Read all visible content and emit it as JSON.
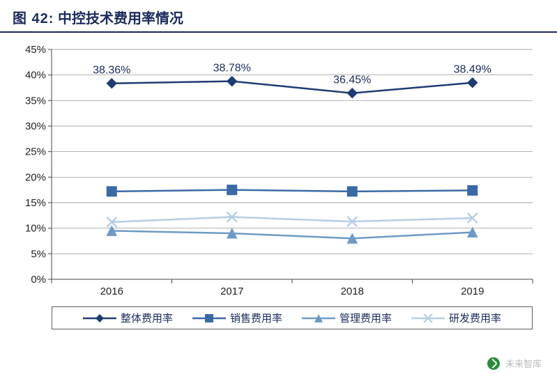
{
  "title_prefix": "图 42:",
  "title_text": "中控技术费用率情况",
  "watermark": "未来智库",
  "chart": {
    "type": "line",
    "categories": [
      "2016",
      "2017",
      "2018",
      "2019"
    ],
    "ylim": [
      0,
      45
    ],
    "ytick_step": 5,
    "ytick_format_suffix": "%",
    "background_color": "#ffffff",
    "gridline_color": "#888888",
    "axis_color": "#444444",
    "axis_fontsize": 15,
    "label_fontsize": 15,
    "datalabel_fontsize": 16,
    "datalabel_color": "#1b2a5c",
    "line_width": 2.5,
    "marker_size": 7,
    "legend_border_color": "#5e5e5e",
    "series": [
      {
        "name": "整体费用率",
        "color": "#1f3b73",
        "marker": "diamond",
        "values": [
          38.36,
          38.78,
          36.45,
          38.49
        ],
        "show_labels": true
      },
      {
        "name": "销售费用率",
        "color": "#3a6aa6",
        "marker": "square",
        "values": [
          17.2,
          17.5,
          17.2,
          17.4
        ],
        "show_labels": false
      },
      {
        "name": "管理费用率",
        "color": "#6e9ac4",
        "marker": "triangle",
        "values": [
          9.5,
          9.0,
          8.0,
          9.2
        ],
        "show_labels": false
      },
      {
        "name": "研发费用率",
        "color": "#b6cde4",
        "marker": "x",
        "values": [
          11.2,
          12.2,
          11.3,
          12.0
        ],
        "show_labels": false
      }
    ]
  }
}
